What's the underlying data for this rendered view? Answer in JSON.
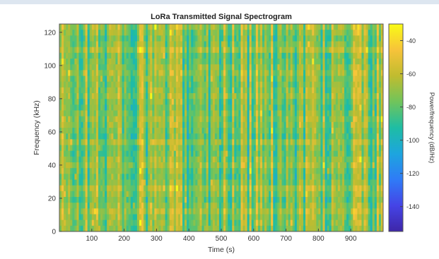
{
  "chart_data": {
    "type": "heatmap",
    "title": "LoRa Transmitted Signal Spectrogram",
    "xlabel": "Time (s)",
    "ylabel": "Frequency (kHz)",
    "xlim": [
      0,
      1000
    ],
    "ylim": [
      0,
      125
    ],
    "x_ticks": [
      100,
      200,
      300,
      400,
      500,
      600,
      700,
      800,
      900
    ],
    "y_ticks": [
      0,
      20,
      40,
      60,
      80,
      100,
      120
    ],
    "colorbar": {
      "label": "Power/frequency (dB/Hz)",
      "range": [
        -155,
        -30
      ],
      "ticks": [
        -40,
        -60,
        -80,
        -100,
        -120,
        -140
      ]
    },
    "colormap": "parula",
    "typical_power_db": -75,
    "grid": false,
    "legend": "none"
  }
}
